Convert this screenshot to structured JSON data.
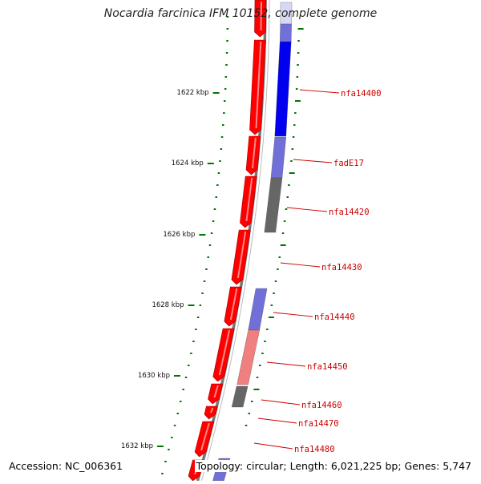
{
  "title": "Nocardia farcinica IFM 10152, complete genome",
  "footer": {
    "accession": "Accession: NC_006361",
    "summary": "Topology: circular; Length: 6,021,225 bp; Genes: 5,747"
  },
  "colors": {
    "forward_strand": "#ff0000",
    "reverse_strand_dark": "#0000ee",
    "reverse_strand_light": "#7070d8",
    "pale_blue": "#d8d8f4",
    "gray_feature": "#666666",
    "pink_feature": "#f08080",
    "ticks": "#007700",
    "labels": "#cc0000",
    "backbone": "#777777"
  },
  "ruler": {
    "unit": "kbp",
    "major_ticks": [
      "1622 kbp",
      "1624 kbp",
      "1626 kbp",
      "1628 kbp",
      "1630 kbp",
      "1632 kbp"
    ]
  },
  "genes": [
    {
      "label": "nfa14400"
    },
    {
      "label": "fadE17"
    },
    {
      "label": "nfa14420"
    },
    {
      "label": "nfa14430"
    },
    {
      "label": "nfa14440"
    },
    {
      "label": "nfa14450"
    },
    {
      "label": "nfa14460"
    },
    {
      "label": "nfa14470"
    },
    {
      "label": "nfa14480"
    }
  ]
}
